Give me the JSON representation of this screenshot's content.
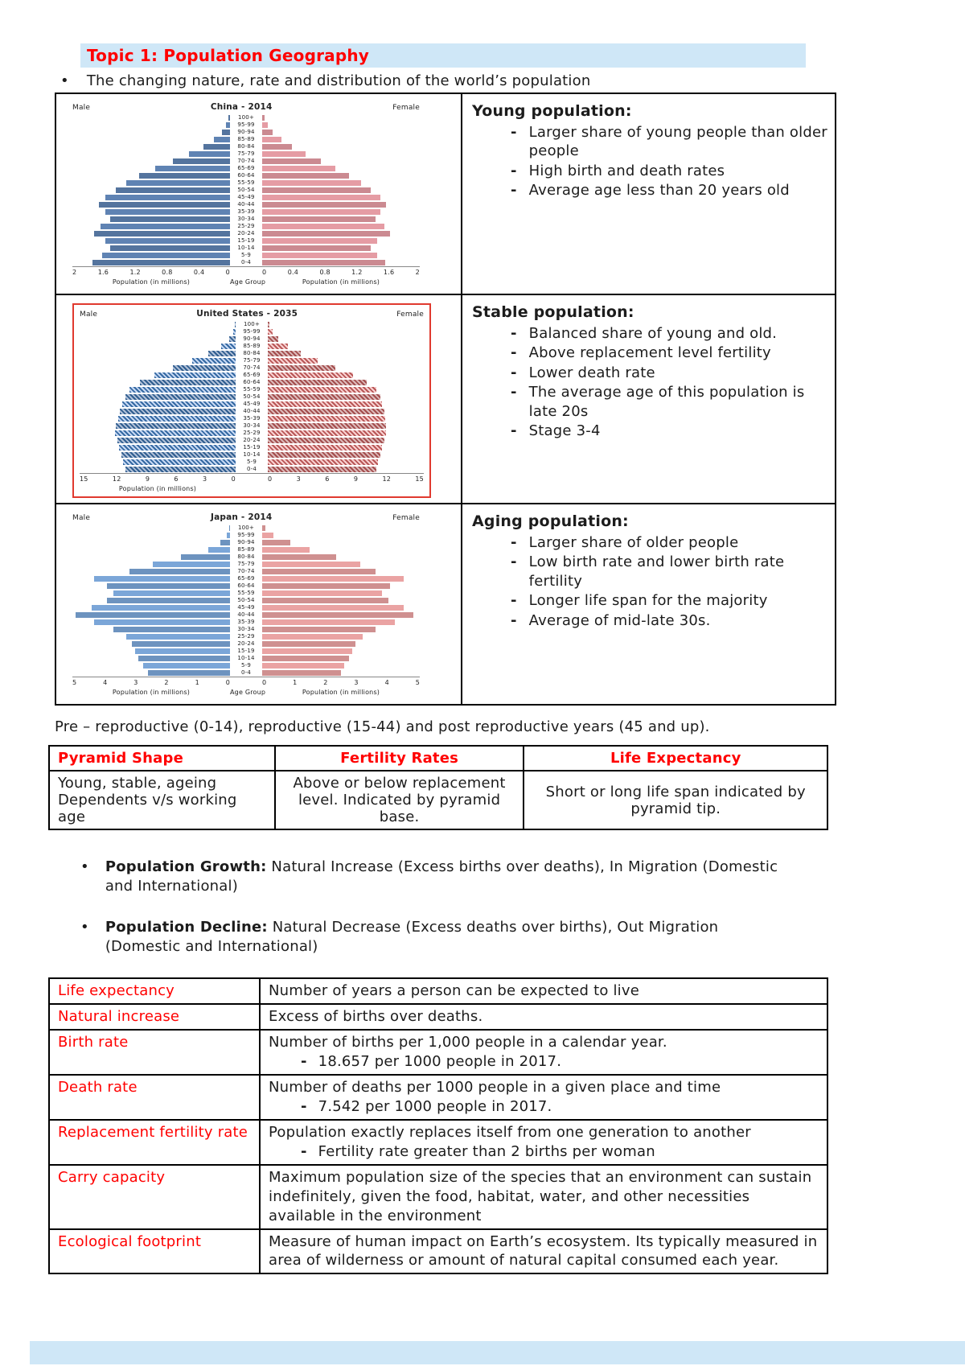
{
  "page": {
    "title": "Topic 1: Population Geography",
    "intro_bullet": "The changing nature, rate and distribution of the world’s population",
    "pre_text": "Pre – reproductive (0-14), reproductive (15-44) and post reproductive years (45 and up)."
  },
  "pyramid_rows": [
    {
      "heading": "Young population:",
      "bullets": [
        "Larger share of young people than older people",
        "High birth and death rates",
        "Average age less than 20 years old"
      ]
    },
    {
      "heading": "Stable population:",
      "bullets": [
        "Balanced share of young and old.",
        "Above replacement level fertility",
        "Lower death rate",
        "The average age of this population is late 20s",
        "Stage 3-4"
      ]
    },
    {
      "heading": "Aging population:",
      "bullets": [
        "Larger share of older people",
        "Low birth rate and lower birth rate fertility",
        "Longer life span for the majority",
        "Average of mid-late 30s."
      ]
    }
  ],
  "summary_table": {
    "headers": [
      "Pyramid Shape",
      "Fertility Rates",
      "Life Expectancy"
    ],
    "rows": [
      [
        "Young, stable, ageing Dependents v/s working age",
        "Above or below replacement level. Indicated by pyramid base.",
        "Short or long life span indicated by pyramid tip."
      ]
    ]
  },
  "growth_bullets": [
    {
      "term": "Population Growth:",
      "rest": "Natural Increase (Excess births over deaths), In Migration (Domestic and International)"
    },
    {
      "term": "Population Decline:",
      "rest": "Natural Decrease (Excess deaths over births), Out Migration (Domestic and International)"
    }
  ],
  "definitions": [
    {
      "term": "Life expectancy",
      "definition": "Number of years a person can be expected to live",
      "sub": null
    },
    {
      "term": "Natural increase",
      "definition": "Excess of births over deaths.",
      "sub": null
    },
    {
      "term": "Birth rate",
      "definition": "Number of births per 1,000 people in a calendar year.",
      "sub": "18.657 per 1000 people in 2017."
    },
    {
      "term": "Death rate",
      "definition": "Number of deaths per 1000 people in a given place and time",
      "sub": "7.542 per 1000 people in 2017."
    },
    {
      "term": "Replacement fertility rate",
      "definition": "Population exactly replaces itself from one generation to another",
      "sub": "Fertility rate greater than 2 births per woman"
    },
    {
      "term": "Carry capacity",
      "definition": "Maximum population size of the species that an environment can sustain indefinitely, given the food, habitat, water, and other necessities available in the environment",
      "sub": null
    },
    {
      "term": "Ecological footprint",
      "definition": "Measure of human impact on Earth’s ecosystem. Its typically measured in area of wilderness or amount of natural capital consumed each year.",
      "sub": null
    }
  ],
  "chart_data": [
    {
      "type": "bar",
      "variant": "population-pyramid",
      "title": "China - 2014",
      "left_label": "Male",
      "right_label": "Female",
      "axis_max": 2,
      "ticks": [
        "2",
        "1.6",
        "1.2",
        "0.8",
        "0.4",
        "0"
      ],
      "xlabels": [
        "Population (in millions)",
        "Age Group",
        "Population (in millions)"
      ],
      "age_groups": [
        "100+",
        "95-99",
        "90-94",
        "85-89",
        "80-84",
        "75-79",
        "70-74",
        "65-69",
        "60-64",
        "55-59",
        "50-54",
        "45-49",
        "40-44",
        "35-39",
        "30-34",
        "25-29",
        "20-24",
        "15-19",
        "10-14",
        "5-9",
        "0-4"
      ],
      "male": [
        0.02,
        0.05,
        0.1,
        0.2,
        0.34,
        0.52,
        0.72,
        0.95,
        1.15,
        1.32,
        1.45,
        1.58,
        1.66,
        1.58,
        1.52,
        1.64,
        1.72,
        1.58,
        1.52,
        1.62,
        1.74
      ],
      "female": [
        0.03,
        0.07,
        0.13,
        0.24,
        0.38,
        0.55,
        0.74,
        0.93,
        1.1,
        1.26,
        1.38,
        1.5,
        1.57,
        1.5,
        1.44,
        1.55,
        1.62,
        1.46,
        1.38,
        1.46,
        1.56
      ],
      "male_color": "#54749e",
      "female_color": "#cb8a91",
      "pattern": false,
      "red_border": false
    },
    {
      "type": "bar",
      "variant": "population-pyramid",
      "title": "United States - 2035",
      "left_label": "Male",
      "right_label": "Female",
      "axis_max": 15,
      "ticks": [
        "15",
        "12",
        "9",
        "6",
        "3",
        "0"
      ],
      "xlabels": [
        "Population (in millions)",
        "",
        ""
      ],
      "age_groups": [
        "100+",
        "95-99",
        "90-94",
        "85-89",
        "80-84",
        "75-79",
        "70-74",
        "65-69",
        "60-64",
        "55-59",
        "50-54",
        "45-49",
        "40-44",
        "35-39",
        "30-34",
        "25-29",
        "20-24",
        "15-19",
        "10-14",
        "5-9",
        "0-4"
      ],
      "male": [
        0.05,
        0.2,
        0.6,
        1.4,
        2.6,
        4.2,
        6.0,
        7.8,
        9.2,
        10.2,
        10.6,
        10.9,
        11.1,
        11.3,
        11.5,
        11.6,
        11.4,
        11.2,
        11.0,
        10.8,
        10.6
      ],
      "female": [
        0.15,
        0.45,
        1.0,
        1.9,
        3.2,
        4.8,
        6.5,
        8.2,
        9.5,
        10.4,
        10.8,
        11.0,
        11.2,
        11.3,
        11.4,
        11.4,
        11.2,
        11.0,
        10.8,
        10.6,
        10.4
      ],
      "male_color": "#2f5d8f",
      "male_bg": "#b0c0d8",
      "female_color": "#a34d4d",
      "female_bg": "#dcb9b9",
      "pattern": true,
      "red_border": true
    },
    {
      "type": "bar",
      "variant": "population-pyramid",
      "title": "Japan - 2014",
      "left_label": "Male",
      "right_label": "Female",
      "axis_max": 5,
      "ticks": [
        "5",
        "4",
        "3",
        "2",
        "1",
        "0"
      ],
      "xlabels": [
        "Population (in millions)",
        "Age Group",
        "Population (in millions)"
      ],
      "age_groups": [
        "100+",
        "95-99",
        "90-94",
        "85-89",
        "80-84",
        "75-79",
        "70-74",
        "65-69",
        "60-64",
        "55-59",
        "50-54",
        "45-49",
        "40-44",
        "35-39",
        "30-34",
        "25-29",
        "20-24",
        "15-19",
        "10-14",
        "5-9",
        "0-4"
      ],
      "male": [
        0.02,
        0.1,
        0.3,
        0.7,
        1.55,
        2.45,
        3.2,
        4.3,
        3.9,
        3.7,
        3.9,
        4.4,
        4.9,
        4.3,
        3.7,
        3.3,
        3.1,
        3.0,
        2.9,
        2.75,
        2.6
      ],
      "female": [
        0.1,
        0.35,
        0.9,
        1.5,
        2.35,
        3.1,
        3.6,
        4.5,
        4.05,
        3.8,
        4.0,
        4.5,
        4.8,
        4.2,
        3.6,
        3.2,
        2.95,
        2.85,
        2.75,
        2.6,
        2.5
      ],
      "male_color": "#6d93bf",
      "female_color": "#cf9090",
      "pattern": false,
      "red_border": false
    }
  ],
  "colors": {
    "highlight": "#cfe7f7",
    "accent_red": "#ff0000",
    "chart_border_red": "#e03a2f"
  }
}
